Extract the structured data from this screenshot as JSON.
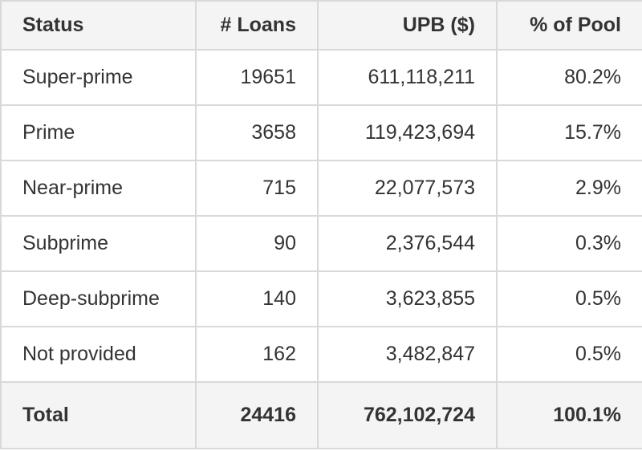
{
  "colors": {
    "header_bg": "#f4f4f4",
    "total_bg": "#f4f4f4",
    "row_bg": "#ffffff",
    "border": "#d9d9d9",
    "text": "#333333"
  },
  "chart_data": {
    "type": "table",
    "columns": [
      "Status",
      "# Loans",
      "UPB ($)",
      "% of Pool"
    ],
    "rows": [
      [
        "Super-prime",
        "19651",
        "611,118,211",
        "80.2%"
      ],
      [
        "Prime",
        "3658",
        "119,423,694",
        "15.7%"
      ],
      [
        "Near-prime",
        "715",
        "22,077,573",
        "2.9%"
      ],
      [
        "Subprime",
        "90",
        "2,376,544",
        "0.3%"
      ],
      [
        "Deep-subprime",
        "140",
        "3,623,855",
        "0.5%"
      ],
      [
        "Not provided",
        "162",
        "3,482,847",
        "0.5%"
      ]
    ],
    "total_row": [
      "Total",
      "24416",
      "762,102,724",
      "100.1%"
    ],
    "layout": {
      "first_column_align": "left",
      "numeric_columns_align": "right",
      "grid": "all-borders"
    }
  }
}
